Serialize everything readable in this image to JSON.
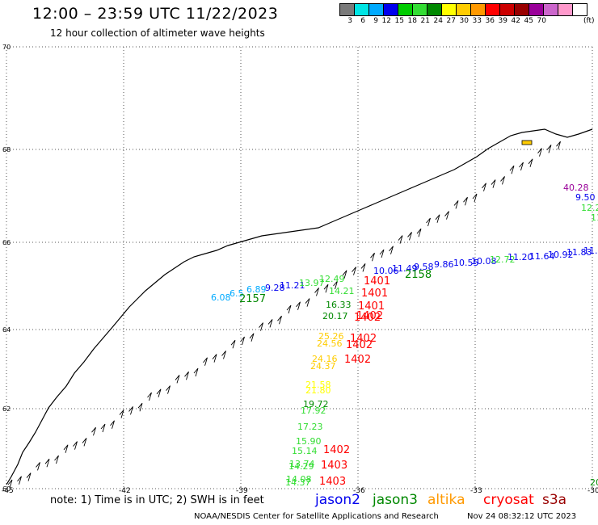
{
  "header": {
    "title": "12:00 – 23:59 UTC 11/22/2023",
    "subtitle": "12 hour collection of altimeter wave heights"
  },
  "scale": {
    "colors": [
      "#7a7a7a",
      "#00e5e5",
      "#00aaff",
      "#0000ee",
      "#00cc00",
      "#33dd33",
      "#008800",
      "#ffff00",
      "#ffcc00",
      "#ff9900",
      "#ff0000",
      "#cc0000",
      "#990000",
      "#990099",
      "#cc66cc",
      "#ff99cc",
      "#ffffff"
    ],
    "labels": [
      "3",
      "6",
      "9",
      "12",
      "15",
      "18",
      "21",
      "24",
      "27",
      "30",
      "33",
      "36",
      "39",
      "42",
      "45",
      "70"
    ],
    "unit": "(ft)"
  },
  "axes": {
    "lat_labels": [
      "70",
      "68",
      "66",
      "64",
      "62",
      "60"
    ],
    "lon_labels": [
      "-45",
      "-42",
      "-39",
      "-36",
      "-33",
      "-30"
    ]
  },
  "swh_points": [
    {
      "t": "40.28",
      "c": "#990099"
    },
    {
      "t": "9.50",
      "c": "#0000ee"
    },
    {
      "t": "12.2",
      "c": "#33dd33"
    },
    {
      "t": "11",
      "c": "#33dd33"
    },
    {
      "t": "6.08",
      "c": "#00aaff"
    },
    {
      "t": "6.5",
      "c": "#00aaff"
    },
    {
      "t": "6.89",
      "c": "#00aaff"
    },
    {
      "t": "9.28",
      "c": "#0000ee"
    },
    {
      "t": "11.21",
      "c": "#0000ee"
    },
    {
      "t": "13.97",
      "c": "#33dd33"
    },
    {
      "t": "12.49",
      "c": "#33dd33"
    },
    {
      "t": "14.21",
      "c": "#33dd33"
    },
    {
      "t": "16.33",
      "c": "#008800"
    },
    {
      "t": "20.17",
      "c": "#008800"
    },
    {
      "t": "10.06",
      "c": "#0000ee"
    },
    {
      "t": "11.49",
      "c": "#0000ee"
    },
    {
      "t": "9.58",
      "c": "#0000ee"
    },
    {
      "t": "9.86",
      "c": "#0000ee"
    },
    {
      "t": "10.55",
      "c": "#0000ee"
    },
    {
      "t": "10.08",
      "c": "#0000ee"
    },
    {
      "t": "12.72",
      "c": "#33dd33"
    },
    {
      "t": "11.20",
      "c": "#0000ee"
    },
    {
      "t": "11.64",
      "c": "#0000ee"
    },
    {
      "t": "10.92",
      "c": "#0000ee"
    },
    {
      "t": "11.83",
      "c": "#0000ee"
    },
    {
      "t": "11.4",
      "c": "#0000ee"
    },
    {
      "t": "25.26",
      "c": "#ffcc00"
    },
    {
      "t": "24.56",
      "c": "#ffcc00"
    },
    {
      "t": "24.16",
      "c": "#ffcc00"
    },
    {
      "t": "24.37",
      "c": "#ffcc00"
    },
    {
      "t": "21.58",
      "c": "#ffff00"
    },
    {
      "t": "21.80",
      "c": "#ffff00"
    },
    {
      "t": "19.72",
      "c": "#008800"
    },
    {
      "t": "17.92",
      "c": "#33dd33"
    },
    {
      "t": "17.23",
      "c": "#33dd33"
    },
    {
      "t": "15.90",
      "c": "#33dd33"
    },
    {
      "t": "15.14",
      "c": "#33dd33"
    },
    {
      "t": "13.74",
      "c": "#33dd33"
    },
    {
      "t": "14.29",
      "c": "#33dd33"
    },
    {
      "t": "14.08",
      "c": "#33dd33"
    },
    {
      "t": "14.37",
      "c": "#33dd33"
    },
    {
      "t": "20",
      "c": "#008800"
    }
  ],
  "time_labels": [
    {
      "t": "2157",
      "c": "#008800"
    },
    {
      "t": "2158",
      "c": "#008800"
    },
    {
      "t": "1401",
      "c": "#ff0000"
    },
    {
      "t": "1401",
      "c": "#ff0000"
    },
    {
      "t": "1401",
      "c": "#ff0000"
    },
    {
      "t": "1402",
      "c": "#ff0000"
    },
    {
      "t": "1402",
      "c": "#ff0000"
    },
    {
      "t": "1402",
      "c": "#ff0000"
    },
    {
      "t": "1402",
      "c": "#ff0000"
    },
    {
      "t": "1402",
      "c": "#ff0000"
    },
    {
      "t": "1402",
      "c": "#ff0000"
    },
    {
      "t": "1403",
      "c": "#ff0000"
    },
    {
      "t": "1403",
      "c": "#ff0000"
    }
  ],
  "footer": {
    "note": "note:  1) Time is in UTC;  2) SWH is in feet",
    "legend": [
      {
        "label": "jason2",
        "color": "#0000ee"
      },
      {
        "label": "jason3",
        "color": "#008800"
      },
      {
        "label": "altika",
        "color": "#ff9900"
      },
      {
        "label": "cryosat",
        "color": "#ff0000"
      },
      {
        "label": "s3a",
        "color": "#990000"
      }
    ],
    "credit": "NOAA/NESDIS Center for Satellite Applications and Research",
    "stamp": "Nov 24 08:32:12 UTC 2023"
  }
}
